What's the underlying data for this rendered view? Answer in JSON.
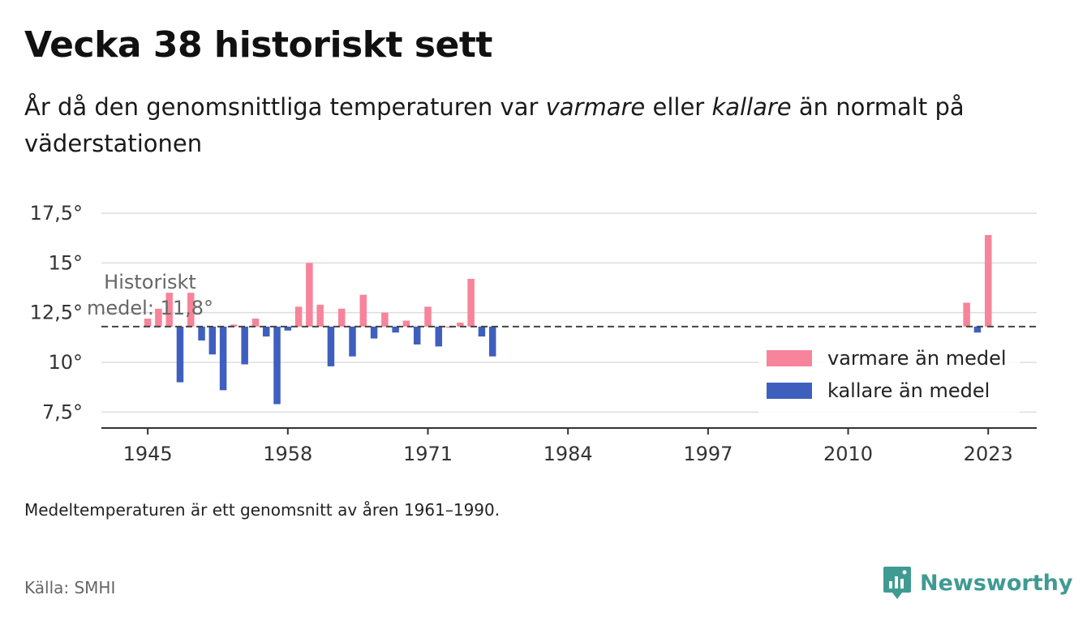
{
  "title": "Vecka 38 historiskt sett",
  "subtitle": {
    "part1": "År då den genomsnittliga temperaturen var ",
    "warm_word": "varmare",
    "part2": " eller ",
    "cold_word": "kallare",
    "part3": " än normalt på väderstationen"
  },
  "note": "Medeltemperaturen är ett genomsnitt av åren 1961–1990.",
  "source": "Källa: SMHI",
  "brand": "Newsworthy",
  "colors": {
    "warm": "#f7849a",
    "cold": "#3f5fbf",
    "grid": "#dddddd",
    "axis": "#333333",
    "mean_line": "#444444",
    "brand": "#3f9b92"
  },
  "chart_data": {
    "type": "bar",
    "baseline": 11.8,
    "baseline_label_line1": "Historiskt",
    "baseline_label_line2": "medel: 11,8°",
    "x_ticks": [
      "1945",
      "1958",
      "1971",
      "1984",
      "1997",
      "2010",
      "2023"
    ],
    "y_ticks": [
      "7,5°",
      "10°",
      "12,5°",
      "15°",
      "17,5°"
    ],
    "y_tick_values": [
      7.5,
      10,
      12.5,
      15,
      17.5
    ],
    "ylim": [
      6.7,
      17.5
    ],
    "xlim": [
      1940.7,
      2027.5
    ],
    "legend": [
      {
        "key": "warm",
        "label": "varmare än medel"
      },
      {
        "key": "cold",
        "label": "kallare än medel"
      }
    ],
    "legend_position": "right",
    "years": [
      1945,
      1946,
      1947,
      1948,
      1949,
      1950,
      1951,
      1952,
      1953,
      1954,
      1955,
      1956,
      1957,
      1958,
      1959,
      1960,
      1961,
      1962,
      1963,
      1964,
      1965,
      1966,
      1967,
      1968,
      1969,
      1970,
      1971,
      1972,
      1973,
      1974,
      1975,
      1976,
      1977,
      2021,
      2022,
      2023
    ],
    "values": [
      12.2,
      12.7,
      13.5,
      9.0,
      13.5,
      11.1,
      10.4,
      8.6,
      11.9,
      9.9,
      12.2,
      11.3,
      7.9,
      11.6,
      12.8,
      15.0,
      12.9,
      9.8,
      12.7,
      10.3,
      13.4,
      11.2,
      12.5,
      11.5,
      12.1,
      10.9,
      12.8,
      10.8,
      11.8,
      12.0,
      14.2,
      11.3,
      10.3,
      13.0,
      11.5,
      16.4
    ]
  }
}
